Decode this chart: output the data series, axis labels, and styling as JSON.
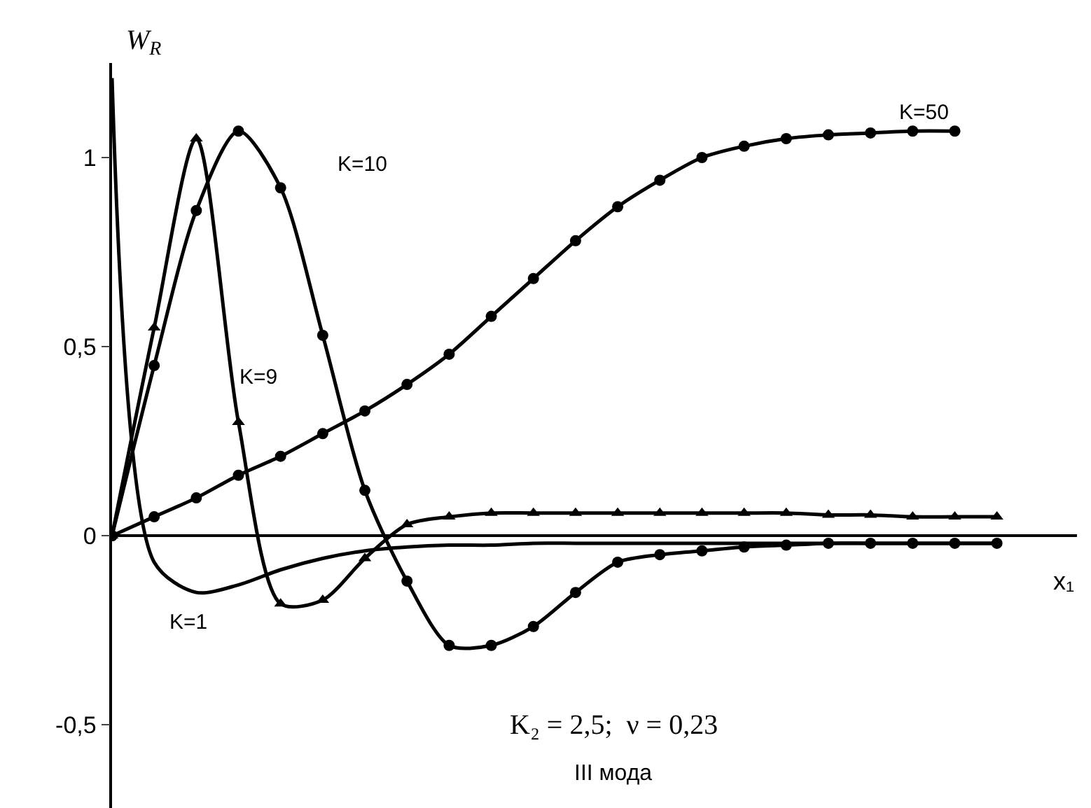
{
  "chart_data": {
    "type": "line",
    "xlabel": "x₁",
    "ylabel": "W$_{R}$",
    "categories": [
      null,
      null,
      null,
      null,
      null,
      null,
      null,
      null,
      null,
      null,
      null,
      null,
      null,
      null,
      null,
      null,
      null,
      null,
      null,
      null,
      null,
      null
    ],
    "series": [
      {
        "name": "K=1",
        "color": "#000000",
        "marker": "none",
        "values": [
          1.21,
          -0.07,
          -0.15,
          -0.13,
          -0.09,
          -0.06,
          -0.04,
          -0.03,
          -0.025,
          -0.025,
          -0.02,
          -0.02,
          -0.02,
          -0.02,
          -0.02,
          -0.02,
          -0.02,
          -0.02,
          -0.02,
          -0.02,
          -0.02,
          -0.02
        ]
      },
      {
        "name": "K=9",
        "color": "#000000",
        "marker": "triangle",
        "values": [
          0,
          0.55,
          1.05,
          0.3,
          -0.18,
          -0.17,
          -0.06,
          0.03,
          0.05,
          0.06,
          0.06,
          0.06,
          0.06,
          0.06,
          0.06,
          0.06,
          0.06,
          0.055,
          0.055,
          0.05,
          0.05,
          0.05
        ]
      },
      {
        "name": "K=10",
        "color": "#000000",
        "marker": "circle",
        "values": [
          0,
          0.45,
          0.86,
          1.07,
          0.92,
          0.53,
          0.12,
          -0.12,
          -0.29,
          -0.29,
          -0.24,
          -0.15,
          -0.07,
          -0.05,
          -0.04,
          -0.03,
          -0.025,
          -0.02,
          -0.02,
          -0.02,
          -0.02,
          -0.02
        ]
      },
      {
        "name": "K=50",
        "color": "#000000",
        "marker": "circle",
        "values": [
          0,
          0.05,
          0.1,
          0.16,
          0.21,
          0.27,
          0.33,
          0.4,
          0.48,
          0.58,
          0.68,
          0.78,
          0.87,
          0.94,
          1.0,
          1.03,
          1.05,
          1.06,
          1.065,
          1.07,
          1.07,
          null
        ]
      }
    ],
    "ylim": [
      -0.72,
      1.25
    ],
    "yticks": [
      {
        "value": -0.5,
        "label": "-0,5"
      },
      0,
      {
        "value": 0.5,
        "label": "0,5"
      },
      1
    ],
    "tick_labels": "y",
    "legend": false,
    "annotations": [
      "K₂ = 2,5;  ν = 0,23",
      "III мода"
    ]
  }
}
